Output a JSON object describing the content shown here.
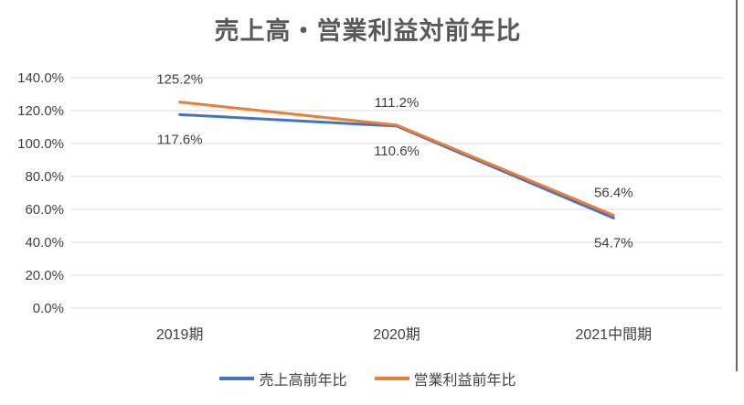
{
  "chart_data": {
    "type": "line",
    "title": "売上高・営業利益対前年比",
    "categories": [
      "2019期",
      "2020期",
      "2021中間期"
    ],
    "series": [
      {
        "name": "売上高前年比",
        "color": "#4472C4",
        "values": [
          117.6,
          110.6,
          54.7
        ],
        "labels": [
          "117.6%",
          "110.6%",
          "54.7%"
        ],
        "label_position": "below"
      },
      {
        "name": "営業利益前年比",
        "color": "#ED7D31",
        "values": [
          125.2,
          111.2,
          56.4
        ],
        "labels": [
          "125.2%",
          "111.2%",
          "56.4%"
        ],
        "label_position": "above"
      }
    ],
    "y_tick_values": [
      0,
      20,
      40,
      60,
      80,
      100,
      120,
      140
    ],
    "y_tick_labels": [
      "0.0%",
      "20.0%",
      "40.0%",
      "60.0%",
      "80.0%",
      "100.0%",
      "120.0%",
      "140.0%"
    ],
    "ylim": [
      0,
      140
    ],
    "grid": true,
    "legend_position": "bottom",
    "colors": {
      "gridline": "#D9D9D9",
      "axis_text": "#404040",
      "title_text": "#595959",
      "data_label_text": "#404040",
      "series_blue": "#4472C4",
      "series_orange": "#ED7D31",
      "border": "#666666"
    }
  }
}
